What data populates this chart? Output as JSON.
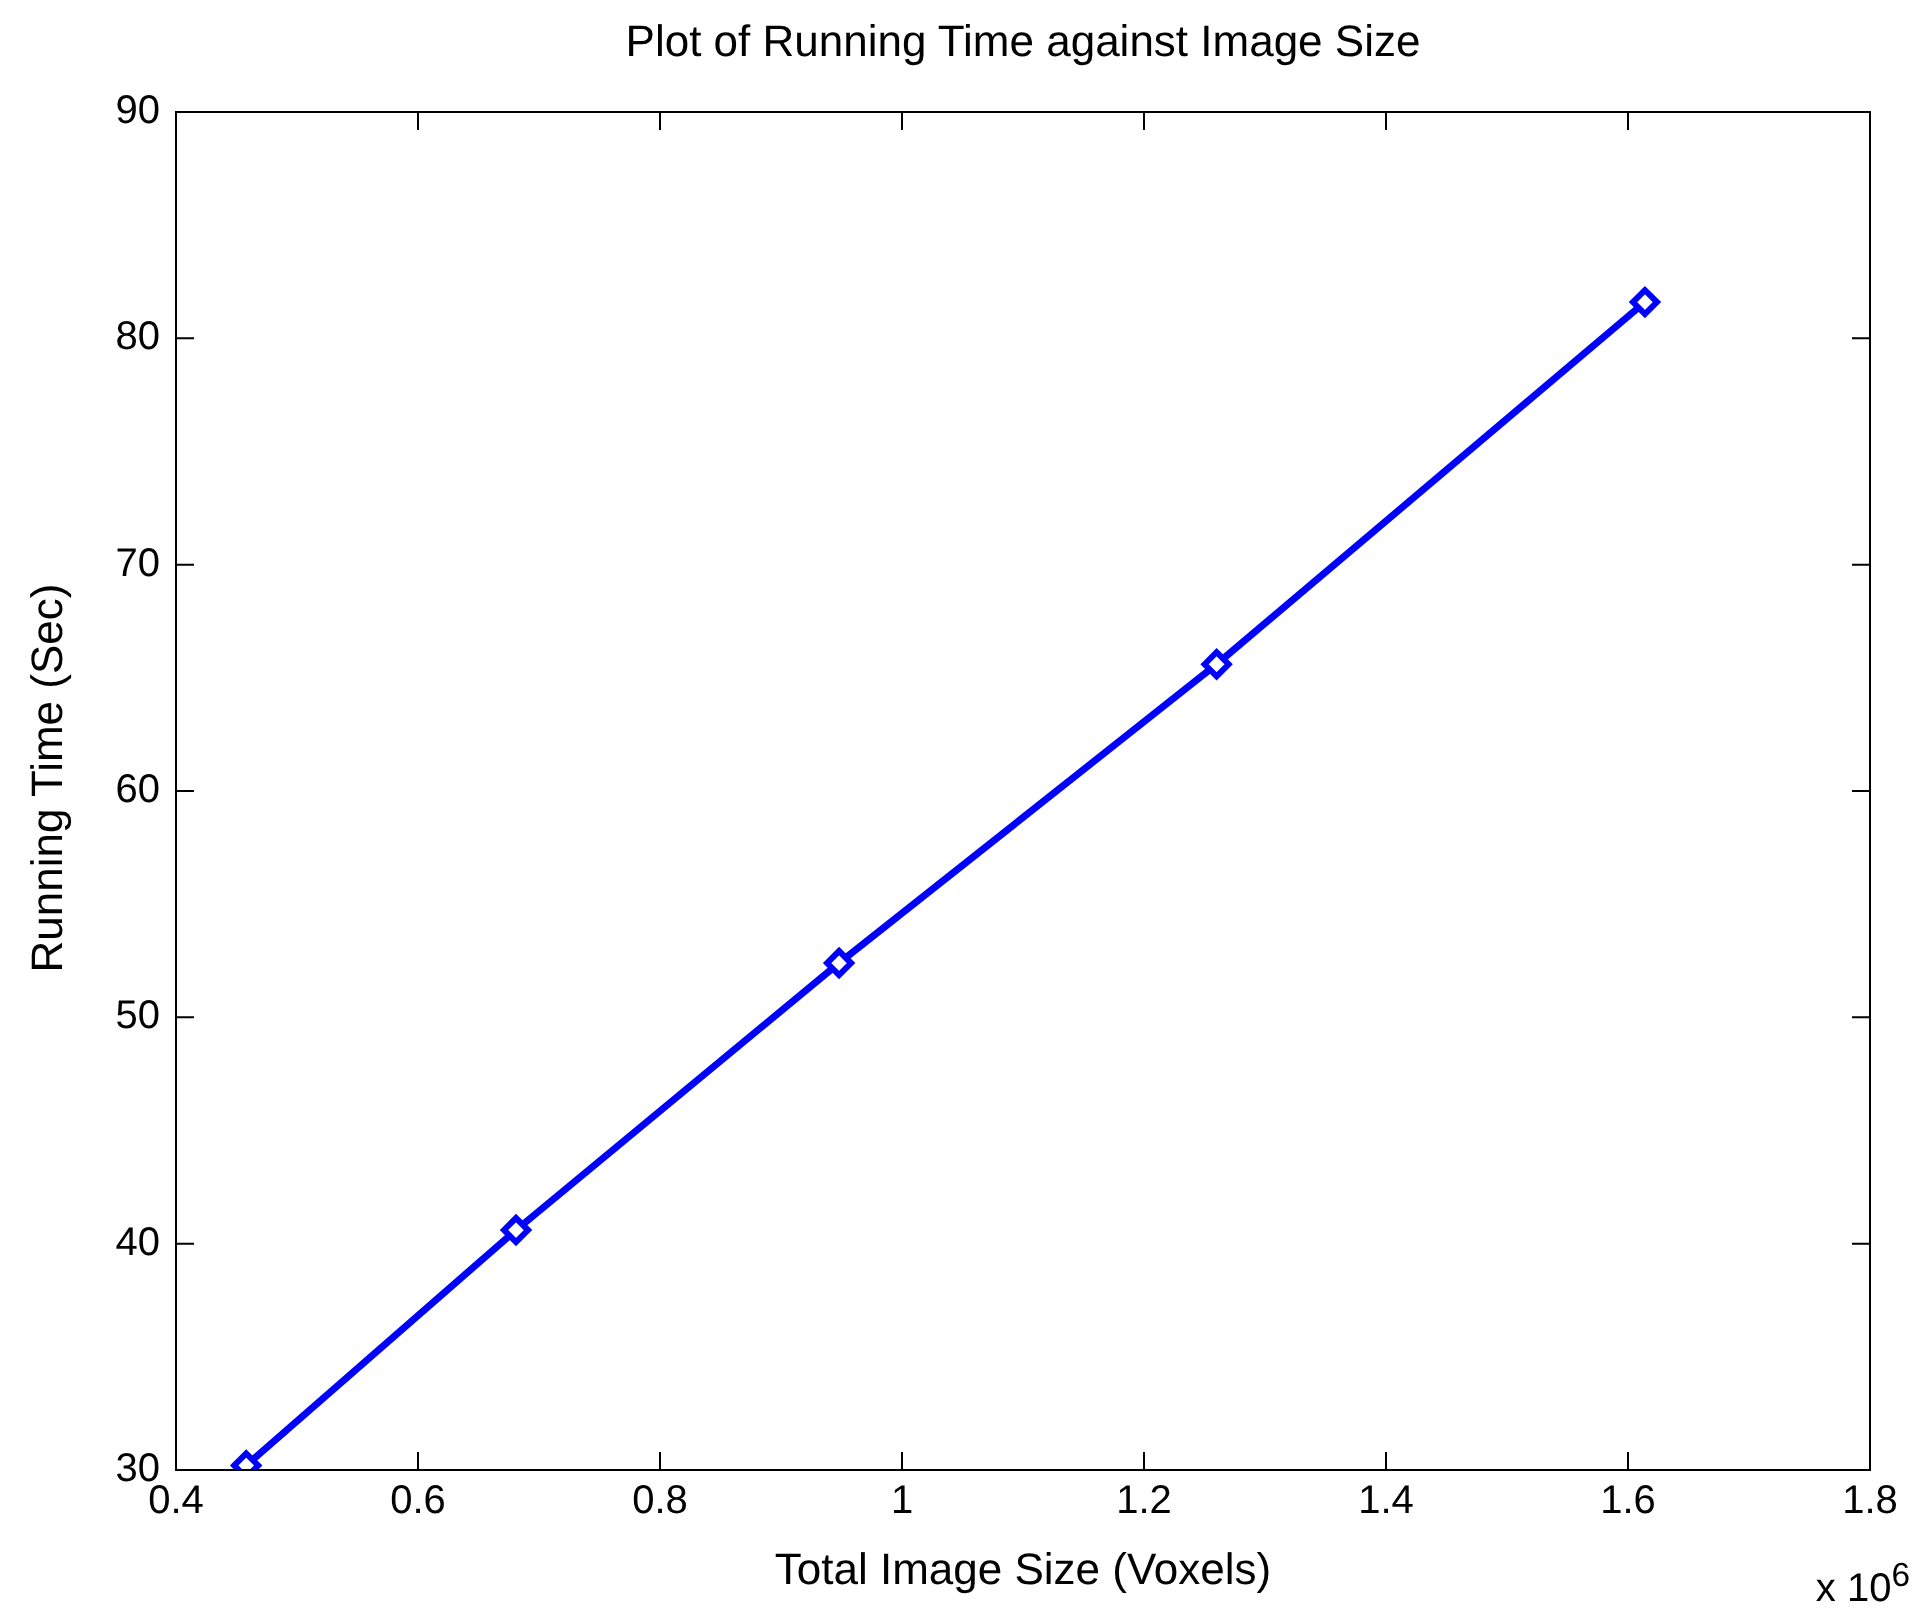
{
  "chart_data": {
    "type": "line",
    "title": "Plot of Running Time against Image Size",
    "xlabel": "Total Image Size (Voxels)",
    "ylabel": "Running Time (Sec)",
    "x": [
      0.458,
      0.681,
      0.948,
      1.26,
      1.614
    ],
    "series": [
      {
        "color": "#0000ff",
        "values": [
          30.2,
          40.6,
          52.4,
          65.6,
          81.6
        ]
      }
    ],
    "xlim": [
      0.4,
      1.8
    ],
    "xticks": [
      {
        "value": 0.4,
        "label": "0.4"
      },
      {
        "value": 0.6,
        "label": "0.6"
      },
      {
        "value": 0.8,
        "label": "0.8"
      },
      1,
      {
        "value": 1.2,
        "label": "1.2"
      },
      {
        "value": 1.4,
        "label": "1.4"
      },
      {
        "value": 1.6,
        "label": "1.6"
      },
      {
        "value": 1.8,
        "label": "1.8"
      }
    ],
    "ylim": [
      30,
      90
    ],
    "yticks": [
      30,
      40,
      50,
      60,
      70,
      80,
      90
    ],
    "annotations": [
      "x 10$^{6}$"
    ],
    "marker": "diamond",
    "line_style": "solid",
    "grid": false,
    "legend": false
  }
}
